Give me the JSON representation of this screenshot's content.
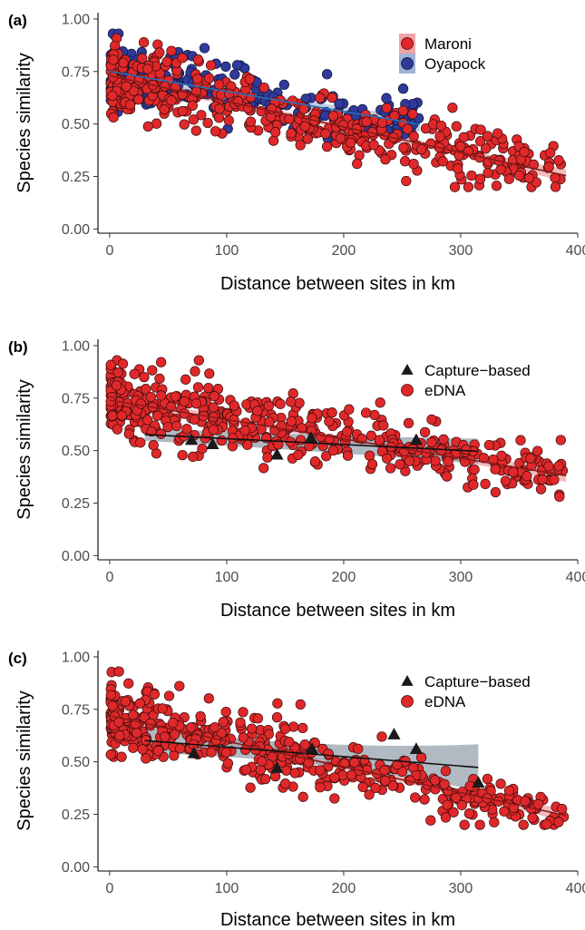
{
  "colors": {
    "maroni_fill": "#e0282a",
    "maroni_band": "#f0a3a6",
    "maroni_line": "#8b1a1a",
    "oyapock_fill": "#2f3a9a",
    "oyapock_band": "#9fb2d8",
    "oyapock_line": "#2b6cb0",
    "capture_fill": "#1a1a1a",
    "capture_band": "#97a1ad",
    "capture_line": "#111111",
    "point_edge": "#3a0d0d"
  },
  "chart_data": [
    {
      "panel_label": "(a)",
      "type": "scatter",
      "xlabel": "Distance between sites in km",
      "ylabel": "Species similarity",
      "xlim": [
        -10,
        400
      ],
      "ylim": [
        -0.02,
        1.03
      ],
      "xticks": [
        0,
        100,
        200,
        300,
        400
      ],
      "xtick_labels": [
        "0",
        "100",
        "200",
        "300",
        "400"
      ],
      "yticks": [
        0,
        0.25,
        0.5,
        0.75,
        1
      ],
      "ytick_labels": [
        "0.00",
        "0.25",
        "0.50",
        "0.75",
        "1.00"
      ],
      "grid": false,
      "legend_position": "top-right",
      "legend": [
        "Maroni",
        "Oyapock"
      ],
      "series": [
        {
          "name": "Oyapock",
          "marker": "circle",
          "n_points_approx": 230,
          "x_range": [
            0,
            265
          ],
          "fit": {
            "x_range": [
              0,
              265
            ],
            "intercept": 0.75,
            "slope": -0.00095
          },
          "ci_halfwidth": [
            0.045,
            0.02,
            0.035
          ]
        },
        {
          "name": "Maroni",
          "marker": "circle",
          "n_points_approx": 460,
          "x_range": [
            0,
            388
          ],
          "fit": {
            "x_range": [
              0,
              390
            ],
            "intercept": 0.73,
            "slope": -0.00122
          },
          "ci_halfwidth": [
            0.03,
            0.012,
            0.03
          ]
        }
      ]
    },
    {
      "panel_label": "(b)",
      "type": "scatter",
      "xlabel": "Distance between sites in km",
      "ylabel": "Species similarity",
      "xlim": [
        -10,
        400
      ],
      "ylim": [
        -0.02,
        1.03
      ],
      "xticks": [
        0,
        100,
        200,
        300,
        400
      ],
      "xtick_labels": [
        "0",
        "100",
        "200",
        "300",
        "400"
      ],
      "yticks": [
        0,
        0.25,
        0.5,
        0.75,
        1
      ],
      "ytick_labels": [
        "0.00",
        "0.25",
        "0.50",
        "0.75",
        "1.00"
      ],
      "grid": false,
      "legend_position": "top-right",
      "legend": [
        "Capture−based",
        "eDNA"
      ],
      "series": [
        {
          "name": "eDNA",
          "marker": "circle",
          "n_points_approx": 460,
          "x_range": [
            0,
            388
          ],
          "fit": {
            "x_range": [
              0,
              390
            ],
            "intercept": 0.74,
            "slope": -0.00092
          },
          "ci_halfwidth": [
            0.03,
            0.012,
            0.03
          ]
        },
        {
          "name": "Capture-based",
          "marker": "triangle",
          "points": [
            {
              "x": 70,
              "y": 0.55
            },
            {
              "x": 88,
              "y": 0.53
            },
            {
              "x": 143,
              "y": 0.48
            },
            {
              "x": 172,
              "y": 0.56
            },
            {
              "x": 262,
              "y": 0.55
            }
          ],
          "fit": {
            "x_range": [
              30,
              315
            ],
            "intercept": 0.585,
            "slope": -0.00028
          },
          "ci_halfwidth": [
            0.03,
            0.04,
            0.06
          ]
        }
      ]
    },
    {
      "panel_label": "(c)",
      "type": "scatter",
      "xlabel": "Distance between sites in km",
      "ylabel": "Species similarity",
      "xlim": [
        -10,
        400
      ],
      "ylim": [
        -0.02,
        1.03
      ],
      "xticks": [
        0,
        100,
        200,
        300,
        400
      ],
      "xtick_labels": [
        "0",
        "100",
        "200",
        "300",
        "400"
      ],
      "yticks": [
        0,
        0.25,
        0.5,
        0.75,
        1
      ],
      "ytick_labels": [
        "0.00",
        "0.25",
        "0.50",
        "0.75",
        "1.00"
      ],
      "grid": false,
      "legend_position": "top-right",
      "legend": [
        "Capture−based",
        "eDNA"
      ],
      "series": [
        {
          "name": "eDNA",
          "marker": "circle",
          "n_points_approx": 460,
          "x_range": [
            0,
            388
          ],
          "fit": {
            "x_range": [
              0,
              390
            ],
            "intercept": 0.72,
            "slope": -0.00122
          },
          "ci_halfwidth": [
            0.03,
            0.012,
            0.03
          ]
        },
        {
          "name": "Capture-based",
          "marker": "triangle",
          "points": [
            {
              "x": 72,
              "y": 0.54
            },
            {
              "x": 143,
              "y": 0.47
            },
            {
              "x": 173,
              "y": 0.56
            },
            {
              "x": 243,
              "y": 0.63
            },
            {
              "x": 262,
              "y": 0.56
            },
            {
              "x": 315,
              "y": 0.4
            }
          ],
          "fit": {
            "x_range": [
              30,
              315
            ],
            "intercept": 0.615,
            "slope": -0.00045
          },
          "ci_halfwidth": [
            0.06,
            0.05,
            0.11
          ]
        }
      ]
    }
  ]
}
